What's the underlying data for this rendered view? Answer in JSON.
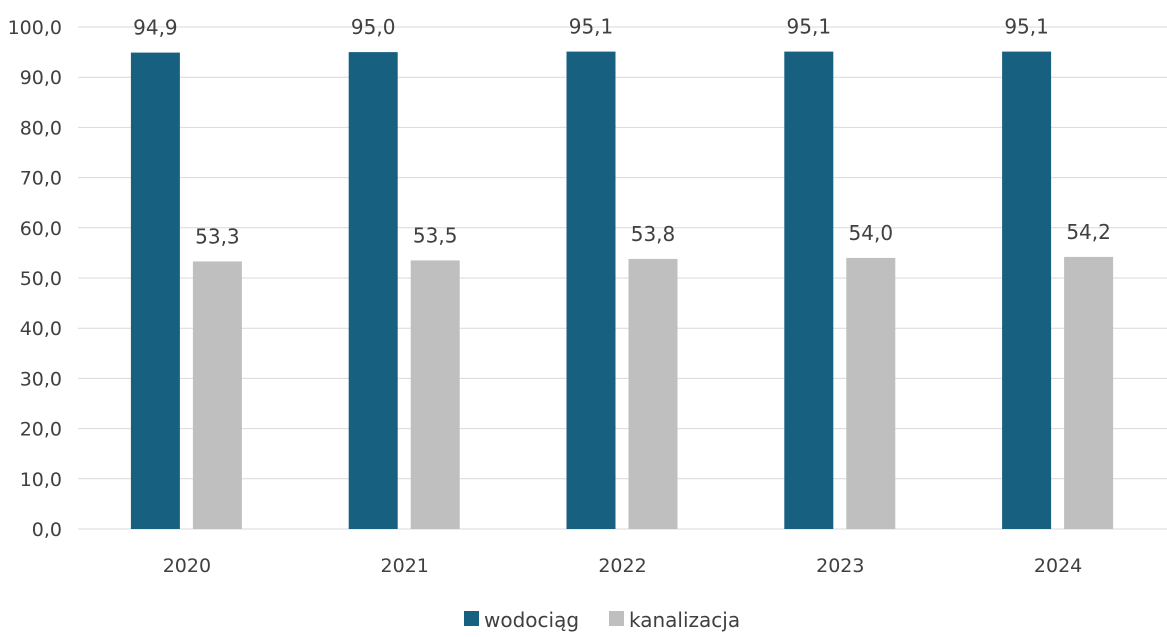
{
  "chart_data": {
    "type": "bar",
    "categories": [
      "2020",
      "2021",
      "2022",
      "2023",
      "2024"
    ],
    "series": [
      {
        "name": "wodociąg",
        "color": "#17607f",
        "values": [
          94.9,
          95.0,
          95.1,
          95.1,
          95.1
        ],
        "labels": [
          "94,9",
          "95,0",
          "95,1",
          "95,1",
          "95,1"
        ]
      },
      {
        "name": "kanalizacja",
        "color": "#bfbfbf",
        "values": [
          53.3,
          53.5,
          53.8,
          54.0,
          54.2
        ],
        "labels": [
          "53,3",
          "53,5",
          "53,8",
          "54,0",
          "54,2"
        ]
      }
    ],
    "ylim": [
      0,
      100
    ],
    "yticks": [
      0,
      10,
      20,
      30,
      40,
      50,
      60,
      70,
      80,
      90,
      100
    ],
    "ytick_labels": [
      "0,0",
      "10,0",
      "20,0",
      "30,0",
      "40,0",
      "50,0",
      "60,0",
      "70,0",
      "80,0",
      "90,0",
      "100,0"
    ],
    "title": "",
    "xlabel": "",
    "ylabel": "",
    "grid": true,
    "legend": "bottom-center"
  }
}
